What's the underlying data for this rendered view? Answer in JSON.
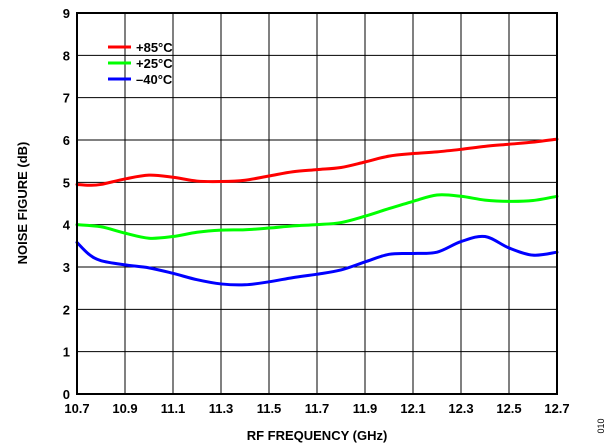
{
  "chart_data": {
    "type": "line",
    "title": "",
    "xlabel": "RF FREQUENCY (GHz)",
    "ylabel": "NOISE FIGURE (dB)",
    "xlim": [
      10.7,
      12.7
    ],
    "ylim": [
      0,
      9
    ],
    "x_ticks": [
      10.7,
      10.9,
      11.1,
      11.3,
      11.5,
      11.7,
      11.9,
      12.1,
      12.3,
      12.5,
      12.7
    ],
    "x_tick_labels": [
      "10.7",
      "10.9",
      "11.1",
      "11.3",
      "11.5",
      "11.7",
      "11.9",
      "12.1",
      "12.3",
      "12.5",
      "12.7"
    ],
    "y_ticks": [
      0,
      1,
      2,
      3,
      4,
      5,
      6,
      7,
      8,
      9
    ],
    "y_tick_labels": [
      "0",
      "1",
      "2",
      "3",
      "4",
      "5",
      "6",
      "7",
      "8",
      "9"
    ],
    "grid": true,
    "legend_position": "top-left",
    "series": [
      {
        "name": "+85°C",
        "color": "#ff0000",
        "x": [
          10.7,
          10.75,
          10.8,
          10.9,
          11.0,
          11.1,
          11.2,
          11.3,
          11.4,
          11.5,
          11.6,
          11.7,
          11.8,
          11.9,
          12.0,
          12.1,
          12.2,
          12.3,
          12.4,
          12.5,
          12.6,
          12.7
        ],
        "y": [
          4.95,
          4.93,
          4.95,
          5.08,
          5.17,
          5.12,
          5.03,
          5.02,
          5.05,
          5.15,
          5.25,
          5.3,
          5.35,
          5.48,
          5.62,
          5.68,
          5.72,
          5.78,
          5.85,
          5.9,
          5.95,
          6.02
        ]
      },
      {
        "name": "+25°C",
        "color": "#00ff00",
        "x": [
          10.7,
          10.8,
          10.9,
          11.0,
          11.1,
          11.2,
          11.3,
          11.4,
          11.5,
          11.6,
          11.7,
          11.8,
          11.9,
          12.0,
          12.1,
          12.2,
          12.3,
          12.4,
          12.5,
          12.6,
          12.7
        ],
        "y": [
          4.0,
          3.95,
          3.8,
          3.68,
          3.72,
          3.82,
          3.87,
          3.88,
          3.92,
          3.97,
          4.0,
          4.05,
          4.2,
          4.38,
          4.55,
          4.7,
          4.67,
          4.58,
          4.55,
          4.57,
          4.67
        ]
      },
      {
        "name": "–40°C",
        "color": "#0000ff",
        "x": [
          10.7,
          10.75,
          10.8,
          10.9,
          11.0,
          11.1,
          11.2,
          11.3,
          11.4,
          11.5,
          11.6,
          11.7,
          11.8,
          11.9,
          12.0,
          12.1,
          12.2,
          12.3,
          12.4,
          12.5,
          12.6,
          12.7
        ],
        "y": [
          3.58,
          3.3,
          3.15,
          3.05,
          2.98,
          2.85,
          2.7,
          2.6,
          2.58,
          2.65,
          2.75,
          2.83,
          2.93,
          3.12,
          3.3,
          3.32,
          3.35,
          3.6,
          3.72,
          3.45,
          3.28,
          3.35
        ]
      }
    ]
  },
  "figure_id": "010"
}
